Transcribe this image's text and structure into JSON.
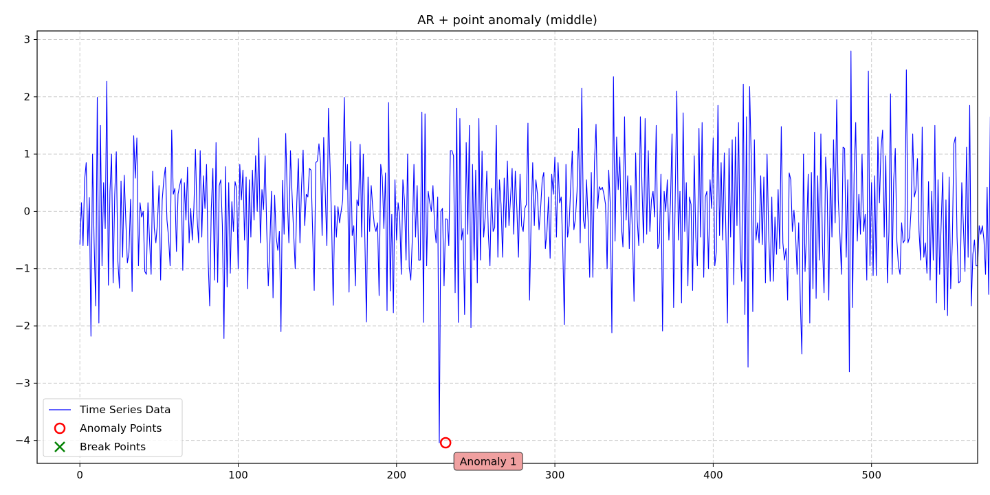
{
  "chart_data": {
    "type": "line",
    "title": "AR + point anomaly (middle)",
    "xlabel": "",
    "ylabel": "",
    "xlim": [
      -27,
      567
    ],
    "ylim": [
      -4.4,
      3.15
    ],
    "xticks": [
      0,
      100,
      200,
      300,
      400,
      500
    ],
    "yticks": [
      -4,
      -3,
      -2,
      -1,
      0,
      1,
      2,
      3
    ],
    "grid": true,
    "legend_position": "lower-left",
    "series": [
      {
        "name": "Time Series Data",
        "color": "#0000ff",
        "values": [
          -0.58,
          0.15,
          -0.6,
          0.55,
          0.85,
          -0.6,
          0.24,
          -2.18,
          1.0,
          -0.55,
          -1.65,
          1.99,
          -1.95,
          1.5,
          -0.95,
          0.5,
          -0.3,
          2.27,
          -1.29,
          0.35,
          1.0,
          -1.25,
          0.28,
          1.04,
          -0.87,
          -1.34,
          0.53,
          -0.8,
          0.63,
          -0.15,
          -0.9,
          -0.72,
          0.21,
          -1.4,
          1.32,
          0.58,
          1.28,
          -0.95,
          0.15,
          -0.1,
          0.0,
          -1.05,
          -1.1,
          0.15,
          -0.5,
          -1.1,
          0.7,
          -0.3,
          -0.55,
          -0.2,
          0.45,
          -1.2,
          0.2,
          0.55,
          0.77,
          -0.15,
          -0.45,
          -0.95,
          1.42,
          0.3,
          0.4,
          -0.7,
          0.3,
          0.45,
          0.57,
          -1.03,
          0.5,
          -0.15,
          0.77,
          -0.55,
          0.05,
          -0.5,
          0.05,
          1.08,
          -0.1,
          -0.55,
          1.06,
          -0.45,
          0.62,
          0.05,
          0.82,
          -0.85,
          -1.65,
          0.05,
          0.75,
          -1.2,
          1.2,
          -1.24,
          0.45,
          0.55,
          -0.25,
          -2.22,
          0.78,
          -1.32,
          0.5,
          -1.08,
          0.17,
          -0.35,
          0.52,
          0.4,
          -1.0,
          0.82,
          0.2,
          0.72,
          -0.5,
          0.6,
          -1.35,
          0.55,
          -0.45,
          0.72,
          -0.15,
          0.97,
          0.0,
          1.28,
          -0.55,
          0.38,
          0.03,
          0.97,
          -0.3,
          -1.3,
          -0.55,
          0.35,
          -1.51,
          0.28,
          -0.45,
          -0.68,
          -0.35,
          -2.1,
          0.54,
          -0.4,
          1.36,
          0.25,
          -0.55,
          1.06,
          0.3,
          -0.37,
          -1.0,
          0.15,
          0.92,
          -0.55,
          0.45,
          1.07,
          -0.25,
          0.3,
          0.25,
          0.75,
          0.72,
          -0.35,
          -1.38,
          0.85,
          0.88,
          1.18,
          0.85,
          -0.42,
          1.29,
          0.3,
          -0.6,
          1.8,
          0.8,
          -0.2,
          -1.64,
          0.1,
          -0.45,
          0.08,
          -0.2,
          0.0,
          0.2,
          1.99,
          0.38,
          0.82,
          -1.41,
          1.22,
          -0.42,
          -0.25,
          -1.3,
          0.2,
          0.1,
          1.17,
          -0.45,
          1.0,
          -0.5,
          -1.93,
          0.6,
          -0.35,
          0.45,
          0.05,
          -0.25,
          -0.35,
          -0.2,
          -1.47,
          0.82,
          0.6,
          -0.3,
          0.67,
          -1.73,
          1.9,
          -1.39,
          -0.05,
          -1.77,
          0.55,
          -0.5,
          0.15,
          -0.1,
          -1.1,
          0.55,
          0.2,
          -0.85,
          1.0,
          -0.97,
          -1.2,
          -0.45,
          0.82,
          -0.45,
          0.45,
          -0.85,
          -0.85,
          1.73,
          -1.94,
          1.7,
          -0.95,
          0.35,
          0.15,
          0.0,
          0.45,
          -0.24,
          -0.55,
          0.25,
          -4.04,
          0.0,
          0.05,
          -1.3,
          -0.13,
          -0.14,
          -0.6,
          1.06,
          1.06,
          0.97,
          -1.42,
          1.8,
          -1.94,
          1.62,
          -0.5,
          -0.3,
          -1.8,
          1.2,
          -0.4,
          1.5,
          -2.03,
          0.82,
          -0.85,
          0.72,
          -1.25,
          1.62,
          -0.85,
          1.05,
          -0.45,
          -0.1,
          0.7,
          -0.4,
          -0.95,
          0.4,
          -0.35,
          -0.28,
          1.5,
          -0.8,
          0.55,
          0.12,
          -0.8,
          0.58,
          -0.28,
          0.88,
          -0.25,
          0.23,
          0.75,
          -0.4,
          0.7,
          0.05,
          -0.8,
          0.65,
          -0.25,
          -0.35,
          0.05,
          0.12,
          1.54,
          -1.55,
          -0.15,
          0.85,
          -0.25,
          0.55,
          0.3,
          -0.32,
          0.05,
          0.55,
          0.68,
          -0.65,
          -0.35,
          0.25,
          -0.82,
          0.65,
          0.3,
          0.95,
          -0.45,
          0.85,
          0.15,
          0.25,
          -0.65,
          -1.98,
          0.82,
          -0.45,
          -0.25,
          0.45,
          1.05,
          -0.32,
          -0.12,
          0.35,
          1.45,
          -0.55,
          2.15,
          -0.15,
          -0.3,
          0.55,
          -0.15,
          -1.15,
          0.68,
          -1.15,
          0.85,
          1.52,
          0.05,
          0.43,
          0.38,
          0.42,
          0.3,
          0.12,
          -1.0,
          0.72,
          0.12,
          -2.12,
          2.35,
          -0.52,
          1.3,
          0.38,
          0.95,
          -0.25,
          -0.62,
          1.65,
          -0.15,
          0.62,
          -0.65,
          0.45,
          -0.38,
          -1.57,
          1.02,
          -0.15,
          -0.6,
          1.65,
          0.45,
          -0.55,
          1.62,
          -0.4,
          1.06,
          -0.35,
          0.2,
          0.35,
          -0.1,
          1.5,
          -0.65,
          -0.55,
          0.65,
          -2.09,
          0.35,
          0.0,
          0.55,
          -0.5,
          0.15,
          1.35,
          -1.68,
          0.25,
          2.1,
          -0.5,
          0.35,
          -1.6,
          1.72,
          -0.35,
          0.5,
          -1.3,
          0.25,
          0.12,
          -1.38,
          0.97,
          -0.45,
          -0.95,
          1.45,
          -0.45,
          1.55,
          -1.15,
          0.25,
          0.35,
          -1.0,
          0.55,
          0.05,
          1.28,
          -0.95,
          -0.7,
          1.85,
          -0.42,
          0.85,
          -0.5,
          1.02,
          -0.35,
          -1.95,
          1.1,
          -0.45,
          1.25,
          -1.28,
          1.3,
          -0.25,
          1.55,
          -0.6,
          -1.22,
          2.22,
          -1.8,
          1.65,
          -2.72,
          2.18,
          0.95,
          -1.75,
          1.25,
          -0.5,
          -0.2,
          -0.55,
          0.62,
          -0.58,
          0.6,
          -1.25,
          1.0,
          -0.35,
          -1.22,
          0.25,
          -1.22,
          -0.1,
          -0.75,
          0.38,
          -0.65,
          1.48,
          -0.55,
          -0.85,
          -0.65,
          -1.55,
          0.67,
          0.55,
          -0.35,
          0.02,
          -0.38,
          -1.1,
          -0.2,
          -1.55,
          -2.49,
          1.0,
          -1.05,
          -0.33,
          0.65,
          -1.95,
          0.68,
          -1.35,
          1.38,
          -1.52,
          0.62,
          -0.85,
          1.35,
          -0.6,
          -1.42,
          0.95,
          0.35,
          -1.55,
          0.75,
          -0.45,
          1.25,
          -0.2,
          1.95,
          0.2,
          -0.4,
          -1.1,
          1.12,
          1.1,
          -0.8,
          0.55,
          -2.8,
          2.8,
          -1.68,
          0.65,
          1.55,
          -0.52,
          0.3,
          -0.4,
          1.0,
          -0.35,
          -0.05,
          -1.2,
          2.45,
          -0.95,
          0.5,
          -1.12,
          0.62,
          -1.12,
          1.3,
          0.15,
          1.1,
          1.42,
          -0.45,
          0.97,
          -1.25,
          -0.35,
          2.05,
          -1.1,
          0.55,
          1.1,
          -0.52,
          -0.95,
          -1.1,
          -0.2,
          -0.55,
          -0.5,
          2.47,
          -0.55,
          -0.45,
          0.05,
          1.35,
          0.25,
          0.37,
          0.92,
          -0.35,
          -0.85,
          1.47,
          -0.8,
          -0.55,
          -1.08,
          0.52,
          -1.2,
          0.35,
          -0.85,
          1.5,
          -1.6,
          0.55,
          -1.1,
          -0.2,
          0.68,
          -1.72,
          0.2,
          -1.82,
          0.6,
          -1.35,
          -0.55,
          1.18,
          1.3,
          -0.45,
          -1.25,
          -1.22,
          0.5,
          -0.25,
          -1.05,
          1.12,
          -0.8,
          1.85,
          -1.65,
          -0.75,
          -0.5,
          -0.95,
          -0.95,
          -0.25,
          -0.4,
          -0.25,
          -0.5,
          -1.1,
          0.42,
          -1.45,
          1.65,
          -1.15,
          1.38,
          -1.12,
          0.97
        ]
      }
    ],
    "anomaly_points": {
      "name": "Anomaly Points",
      "color": "#ff0000",
      "points": [
        {
          "x": 231,
          "y": -4.04
        }
      ]
    },
    "break_points": {
      "name": "Break Points",
      "color": "#008000",
      "points": []
    },
    "annotations": [
      {
        "text": "Anomaly 1",
        "x": 231,
        "y": -4.04,
        "bg": "#f0a0a0"
      }
    ]
  }
}
